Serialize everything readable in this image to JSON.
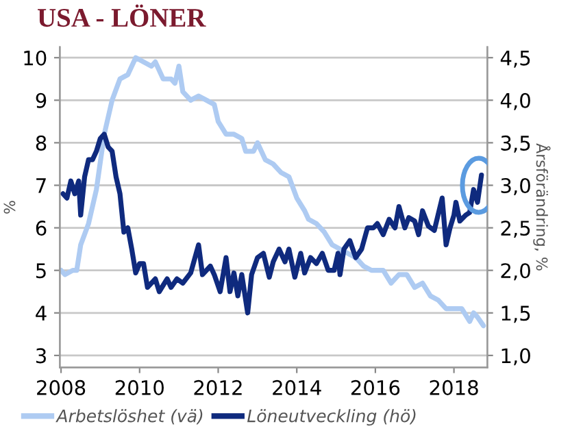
{
  "chart_data": {
    "type": "line",
    "title": "USA - LÖNER",
    "ylabel": "%",
    "y2label": "Årsförändring, %",
    "xlim": [
      2007.97,
      2018.85
    ],
    "xticks": [
      2008,
      2010,
      2012,
      2014,
      2016,
      2018
    ],
    "ylim": [
      2.72,
      10.25
    ],
    "yticks": [
      3,
      4,
      5,
      6,
      7,
      8,
      9,
      10
    ],
    "y2lim": [
      0.86,
      4.625
    ],
    "y2ticks": [
      {
        "value": 1.0,
        "label": "1,0"
      },
      {
        "value": 1.5,
        "label": "1,5"
      },
      {
        "value": 2.0,
        "label": "2,0"
      },
      {
        "value": 2.5,
        "label": "2,5"
      },
      {
        "value": 3.0,
        "label": "3,0"
      },
      {
        "value": 3.5,
        "label": "3,5"
      },
      {
        "value": 4.0,
        "label": "4,0"
      },
      {
        "value": 4.5,
        "label": "4,5"
      }
    ],
    "grid": "y",
    "legend": "bottom",
    "marker": "none",
    "line_style": "solid",
    "series": [
      {
        "name": "Arbetslöshet (vä)",
        "color": "#aecbf2",
        "axis": "y",
        "x": [
          2008.0,
          2008.1,
          2008.3,
          2008.4,
          2008.5,
          2008.7,
          2008.9,
          2009.1,
          2009.3,
          2009.5,
          2009.7,
          2009.9,
          2010.1,
          2010.3,
          2010.4,
          2010.6,
          2010.8,
          2010.9,
          2011.0,
          2011.1,
          2011.3,
          2011.5,
          2011.7,
          2011.9,
          2012.0,
          2012.2,
          2012.4,
          2012.6,
          2012.7,
          2012.9,
          2013.0,
          2013.2,
          2013.4,
          2013.6,
          2013.8,
          2014.0,
          2014.2,
          2014.3,
          2014.5,
          2014.7,
          2014.9,
          2015.1,
          2015.3,
          2015.5,
          2015.7,
          2015.9,
          2016.2,
          2016.4,
          2016.6,
          2016.8,
          2017.0,
          2017.2,
          2017.4,
          2017.6,
          2017.8,
          2018.0,
          2018.2,
          2018.4,
          2018.5,
          2018.6,
          2018.75
        ],
        "values": [
          5.0,
          4.9,
          5.0,
          5.0,
          5.6,
          6.1,
          6.9,
          8.2,
          9.0,
          9.5,
          9.6,
          10.0,
          9.9,
          9.8,
          9.9,
          9.5,
          9.5,
          9.4,
          9.8,
          9.2,
          9.0,
          9.1,
          9.0,
          8.9,
          8.5,
          8.2,
          8.2,
          8.1,
          7.8,
          7.8,
          8.0,
          7.6,
          7.5,
          7.3,
          7.2,
          6.7,
          6.4,
          6.2,
          6.1,
          5.9,
          5.6,
          5.5,
          5.4,
          5.3,
          5.1,
          5.0,
          5.0,
          4.7,
          4.9,
          4.9,
          4.6,
          4.7,
          4.4,
          4.3,
          4.1,
          4.1,
          4.1,
          3.8,
          4.0,
          3.9,
          3.7
        ]
      },
      {
        "name": "Löneutveckling (hö)",
        "color": "#0f2a7e",
        "axis": "y2",
        "x": [
          2008.05,
          2008.15,
          2008.25,
          2008.35,
          2008.45,
          2008.5,
          2008.6,
          2008.7,
          2008.8,
          2008.9,
          2009.0,
          2009.1,
          2009.2,
          2009.3,
          2009.4,
          2009.5,
          2009.6,
          2009.7,
          2009.8,
          2009.9,
          2010.0,
          2010.1,
          2010.2,
          2010.4,
          2010.5,
          2010.7,
          2010.8,
          2010.95,
          2011.1,
          2011.3,
          2011.5,
          2011.6,
          2011.8,
          2011.9,
          2012.05,
          2012.2,
          2012.3,
          2012.4,
          2012.5,
          2012.6,
          2012.75,
          2012.85,
          2013.0,
          2013.15,
          2013.3,
          2013.4,
          2013.55,
          2013.7,
          2013.8,
          2013.95,
          2014.1,
          2014.2,
          2014.35,
          2014.5,
          2014.65,
          2014.8,
          2014.95,
          2015.05,
          2015.1,
          2015.2,
          2015.35,
          2015.5,
          2015.65,
          2015.8,
          2015.95,
          2016.05,
          2016.2,
          2016.35,
          2016.5,
          2016.6,
          2016.75,
          2016.85,
          2017.0,
          2017.1,
          2017.2,
          2017.35,
          2017.5,
          2017.7,
          2017.8,
          2017.9,
          2018.0,
          2018.05,
          2018.15,
          2018.3,
          2018.4,
          2018.5,
          2018.6,
          2018.7
        ],
        "values": [
          2.9,
          2.85,
          3.05,
          2.9,
          3.05,
          2.65,
          3.1,
          3.3,
          3.3,
          3.4,
          3.55,
          3.6,
          3.45,
          3.4,
          3.1,
          2.9,
          2.45,
          2.5,
          2.25,
          1.97,
          2.08,
          2.08,
          1.8,
          1.9,
          1.75,
          1.9,
          1.8,
          1.9,
          1.85,
          1.97,
          2.3,
          1.95,
          2.05,
          1.95,
          1.75,
          2.15,
          1.75,
          1.97,
          1.7,
          1.95,
          1.5,
          1.95,
          2.15,
          2.2,
          1.92,
          2.1,
          2.25,
          2.1,
          2.25,
          1.92,
          2.2,
          1.97,
          2.15,
          2.08,
          2.2,
          2.0,
          2.0,
          2.2,
          1.95,
          2.25,
          2.35,
          2.15,
          2.25,
          2.5,
          2.5,
          2.55,
          2.42,
          2.6,
          2.5,
          2.75,
          2.5,
          2.62,
          2.58,
          2.42,
          2.7,
          2.52,
          2.47,
          2.85,
          2.3,
          2.5,
          2.65,
          2.8,
          2.58,
          2.65,
          2.68,
          2.95,
          2.8,
          3.12
        ]
      }
    ]
  }
}
